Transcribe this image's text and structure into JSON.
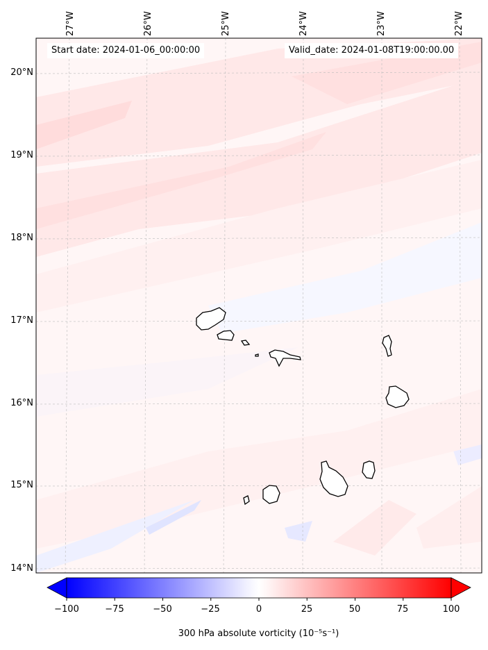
{
  "map": {
    "start_date_label": "Start date: 2024-01-06_00:00:00",
    "valid_date_label": "Valid_date: 2024-01-08T19:00:00.00",
    "lat_labels": [
      "20°N",
      "19°N",
      "18°N",
      "17°N",
      "16°N",
      "15°N",
      "14°N"
    ],
    "lon_labels": [
      "27°W",
      "26°W",
      "25°W",
      "24°W",
      "23°W",
      "22°W"
    ],
    "lat_values": [
      20,
      19,
      18,
      17,
      16,
      15,
      14
    ],
    "lon_values": [
      -27,
      -26,
      -25,
      -24,
      -23,
      -22
    ],
    "islands": [
      "Santo Antão",
      "São Vicente",
      "Santa Luzia",
      "Branco",
      "São Nicolau",
      "Sal",
      "Boa Vista",
      "Maio",
      "Santiago",
      "Fogo",
      "Brava"
    ],
    "land_color": "#ffffff",
    "coast_color": "#000000",
    "grid_color": "#bbbbbb"
  },
  "colorbar": {
    "label": "300 hPa absolute vorticity (10⁻⁵s⁻¹)",
    "ticks": [
      "−100",
      "−75",
      "−50",
      "−25",
      "0",
      "25",
      "50",
      "75",
      "100"
    ],
    "tick_values": [
      -100,
      -75,
      -50,
      -25,
      0,
      25,
      50,
      75,
      100
    ],
    "min": -100,
    "max": 100,
    "low_color": "#0000ff",
    "mid_color": "#ffffff",
    "high_color": "#ff0000"
  }
}
